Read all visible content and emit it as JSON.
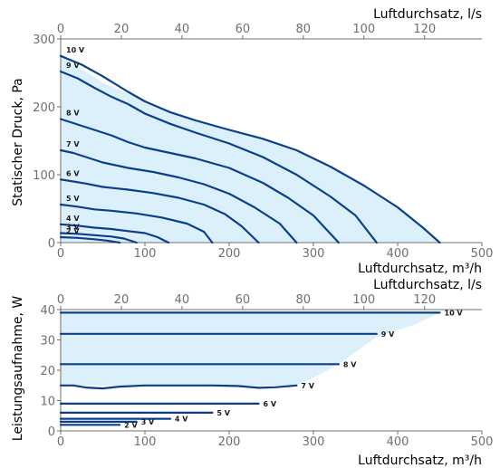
{
  "colors": {
    "curve": "#0b3f8c",
    "fill": "#dcf0fb",
    "axis": "#6f6f6f",
    "text": "#1a1a1a"
  },
  "chart_data": [
    {
      "type": "line",
      "ylabel": "Statischer Druck, Pa",
      "xlabel": "Luftdurchsatz, m³/h",
      "x2label": "Luftdurchsatz, l/s",
      "xlim": [
        0,
        500
      ],
      "ylim": [
        0,
        300
      ],
      "x2lim": [
        0,
        138.9
      ],
      "x_ticks": [
        "0",
        "100",
        "200",
        "300",
        "400",
        "500"
      ],
      "y_ticks": [
        "0",
        "100",
        "200",
        "300"
      ],
      "x2_ticks": [
        "0",
        "20",
        "40",
        "60",
        "80",
        "100",
        "120"
      ],
      "x2_tick_values": [
        0,
        20,
        40,
        60,
        80,
        100,
        120
      ],
      "grid": false,
      "envelope": [
        [
          0,
          275
        ],
        [
          50,
          236
        ],
        [
          100,
          208
        ],
        [
          150,
          186
        ],
        [
          200,
          166
        ],
        [
          250,
          148
        ],
        [
          300,
          124
        ],
        [
          350,
          93
        ],
        [
          400,
          52
        ],
        [
          450,
          0
        ],
        [
          0,
          0
        ]
      ],
      "series": [
        {
          "name": "10 V",
          "points": [
            [
              0,
              275
            ],
            [
              25,
              262
            ],
            [
              50,
              245
            ],
            [
              80,
              222
            ],
            [
              100,
              208
            ],
            [
              130,
              192
            ],
            [
              160,
              180
            ],
            [
              200,
              166
            ],
            [
              240,
              153
            ],
            [
              280,
              136
            ],
            [
              320,
              112
            ],
            [
              360,
              84
            ],
            [
              400,
              52
            ],
            [
              430,
              22
            ],
            [
              450,
              0
            ]
          ]
        },
        {
          "name": "9 V",
          "points": [
            [
              0,
              252
            ],
            [
              20,
              242
            ],
            [
              40,
              228
            ],
            [
              60,
              215
            ],
            [
              80,
              204
            ],
            [
              100,
              190
            ],
            [
              130,
              175
            ],
            [
              160,
              162
            ],
            [
              200,
              146
            ],
            [
              240,
              126
            ],
            [
              280,
              100
            ],
            [
              320,
              68
            ],
            [
              350,
              40
            ],
            [
              375,
              0
            ]
          ]
        },
        {
          "name": "8 V",
          "points": [
            [
              0,
              182
            ],
            [
              20,
              174
            ],
            [
              40,
              166
            ],
            [
              60,
              158
            ],
            [
              80,
              148
            ],
            [
              100,
              140
            ],
            [
              130,
              132
            ],
            [
              160,
              124
            ],
            [
              200,
              110
            ],
            [
              240,
              88
            ],
            [
              270,
              66
            ],
            [
              300,
              40
            ],
            [
              330,
              0
            ]
          ]
        },
        {
          "name": "7 V",
          "points": [
            [
              0,
              136
            ],
            [
              15,
              132
            ],
            [
              30,
              126
            ],
            [
              50,
              118
            ],
            [
              80,
              110
            ],
            [
              110,
              104
            ],
            [
              140,
              96
            ],
            [
              170,
              86
            ],
            [
              200,
              72
            ],
            [
              230,
              52
            ],
            [
              260,
              28
            ],
            [
              280,
              0
            ]
          ]
        },
        {
          "name": "6 V",
          "points": [
            [
              0,
              93
            ],
            [
              15,
              90
            ],
            [
              30,
              87
            ],
            [
              50,
              82
            ],
            [
              80,
              78
            ],
            [
              110,
              73
            ],
            [
              140,
              66
            ],
            [
              170,
              56
            ],
            [
              195,
              42
            ],
            [
              215,
              24
            ],
            [
              235,
              0
            ]
          ]
        },
        {
          "name": "5 V",
          "points": [
            [
              0,
              56
            ],
            [
              20,
              53
            ],
            [
              40,
              49
            ],
            [
              60,
              47
            ],
            [
              90,
              43
            ],
            [
              120,
              37
            ],
            [
              150,
              28
            ],
            [
              170,
              16
            ],
            [
              180,
              0
            ]
          ]
        },
        {
          "name": "4 V",
          "points": [
            [
              0,
              27
            ],
            [
              20,
              25
            ],
            [
              40,
              22
            ],
            [
              60,
              20
            ],
            [
              80,
              17
            ],
            [
              100,
              14
            ],
            [
              115,
              8
            ],
            [
              128,
              0
            ]
          ]
        },
        {
          "name": "3 V",
          "points": [
            [
              0,
              14
            ],
            [
              20,
              13
            ],
            [
              40,
              11
            ],
            [
              60,
              9
            ],
            [
              75,
              6
            ],
            [
              90,
              0
            ]
          ]
        },
        {
          "name": "2 V",
          "points": [
            [
              0,
              8
            ],
            [
              20,
              7
            ],
            [
              40,
              5
            ],
            [
              55,
              3
            ],
            [
              70,
              0
            ]
          ]
        }
      ]
    },
    {
      "type": "line",
      "ylabel": "Leistungsaufnahme, W",
      "xlabel": "Luftdurchsatz, m³/h",
      "x2label": "Luftdurchsatz, l/s",
      "xlim": [
        0,
        500
      ],
      "ylim": [
        0,
        40
      ],
      "x2lim": [
        0,
        138.9
      ],
      "x_ticks": [
        "0",
        "100",
        "200",
        "300",
        "400",
        "500"
      ],
      "y_ticks": [
        "0",
        "10",
        "20",
        "30",
        "40"
      ],
      "x2_ticks": [
        "0",
        "20",
        "40",
        "60",
        "80",
        "100",
        "120"
      ],
      "x2_tick_values": [
        0,
        20,
        40,
        60,
        80,
        100,
        120
      ],
      "grid": false,
      "envelope": [
        [
          0,
          39
        ],
        [
          450,
          39
        ],
        [
          420,
          35
        ],
        [
          375,
          31
        ],
        [
          355,
          27
        ],
        [
          330,
          22
        ],
        [
          310,
          19
        ],
        [
          280,
          15
        ],
        [
          0,
          15
        ]
      ],
      "series": [
        {
          "name": "10 V",
          "points": [
            [
              0,
              39
            ],
            [
              450,
              39
            ]
          ]
        },
        {
          "name": "9 V",
          "points": [
            [
              0,
              32
            ],
            [
              375,
              32
            ]
          ]
        },
        {
          "name": "8 V",
          "points": [
            [
              0,
              22
            ],
            [
              330,
              22
            ]
          ]
        },
        {
          "name": "7 V",
          "points": [
            [
              0,
              15
            ],
            [
              15,
              15
            ],
            [
              30,
              14.3
            ],
            [
              50,
              14
            ],
            [
              70,
              14.6
            ],
            [
              100,
              15
            ],
            [
              140,
              15
            ],
            [
              180,
              15
            ],
            [
              210,
              14.8
            ],
            [
              235,
              14.2
            ],
            [
              255,
              14.4
            ],
            [
              280,
              15
            ]
          ]
        },
        {
          "name": "6 V",
          "points": [
            [
              0,
              9
            ],
            [
              235,
              9
            ]
          ]
        },
        {
          "name": "5 V",
          "points": [
            [
              0,
              6
            ],
            [
              180,
              6
            ]
          ]
        },
        {
          "name": "4 V",
          "points": [
            [
              0,
              4
            ],
            [
              130,
              4
            ]
          ]
        },
        {
          "name": "3 V",
          "points": [
            [
              0,
              3
            ],
            [
              90,
              3
            ]
          ]
        },
        {
          "name": "2 V",
          "points": [
            [
              0,
              2
            ],
            [
              70,
              2
            ]
          ]
        }
      ]
    }
  ]
}
